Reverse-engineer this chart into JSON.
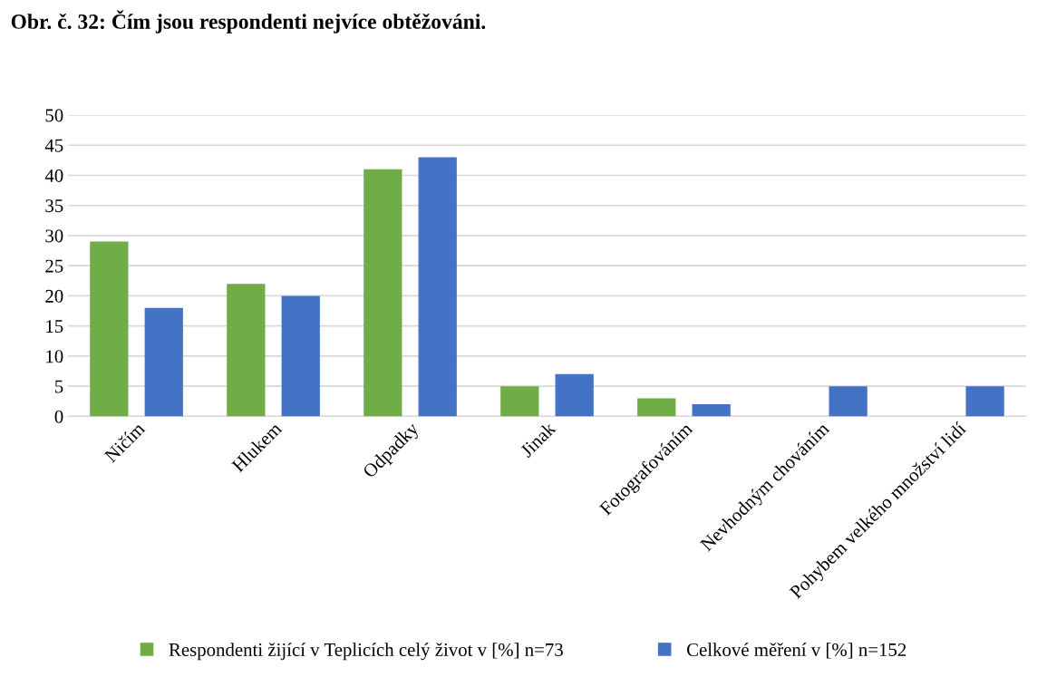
{
  "chart_data": {
    "type": "bar",
    "title": "Obr. č. 32: Čím jsou respondenti nejvíce obtěžováni.",
    "categories": [
      "Ničím",
      "Hlukem",
      "Odpadky",
      "Jinak",
      "Fotografováním",
      "Nevhodným chováním",
      "Pohybem velkého množství lidí"
    ],
    "series": [
      {
        "name": "Respondenti žijící v Teplicích celý život v [%] n=73",
        "color": "#70ad47",
        "values": [
          29,
          22,
          41,
          5,
          3,
          null,
          null
        ]
      },
      {
        "name": "Celkové měření v [%] n=152",
        "color": "#4472c4",
        "values": [
          18,
          20,
          43,
          7,
          2,
          5,
          5
        ]
      }
    ],
    "ylim": [
      0,
      50
    ],
    "yticks": [
      0,
      5,
      10,
      15,
      20,
      25,
      30,
      35,
      40,
      45,
      50
    ],
    "grid": "y",
    "legend": "bottom"
  }
}
